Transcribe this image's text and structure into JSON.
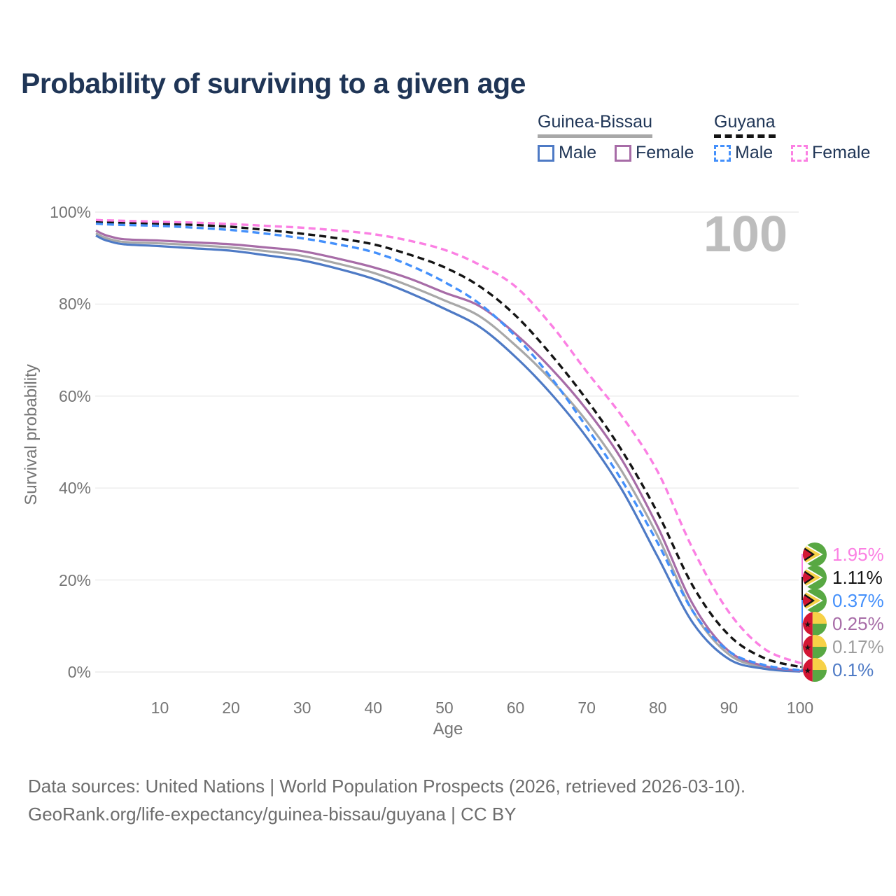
{
  "title": "Probability of surviving to a given age",
  "watermark_age": "100",
  "legend": {
    "groups": [
      {
        "name": "Guinea-Bissau",
        "line_color": "#a8a8a8",
        "line_style": "solid",
        "items": [
          {
            "label": "Male",
            "color": "#4e7ac5",
            "dashed": false
          },
          {
            "label": "Female",
            "color": "#a76ca7",
            "dashed": false
          }
        ]
      },
      {
        "name": "Guyana",
        "line_color": "#141414",
        "line_style": "dashed",
        "items": [
          {
            "label": "Male",
            "color": "#4490fb",
            "dashed": true
          },
          {
            "label": "Female",
            "color": "#fb80e3",
            "dashed": true
          }
        ]
      }
    ]
  },
  "chart_data": {
    "type": "line",
    "title": "Probability of surviving to a given age",
    "xlabel": "Age",
    "ylabel": "Survival probability",
    "xlim": [
      1,
      100
    ],
    "ylim": [
      0,
      100
    ],
    "grid": "horizontal",
    "legend_position": "top-right",
    "x_ticks": [
      10,
      20,
      30,
      40,
      50,
      60,
      70,
      80,
      90,
      100
    ],
    "y_ticks": [
      {
        "value": 0,
        "label": "0%"
      },
      {
        "value": 20,
        "label": "20%"
      },
      {
        "value": 40,
        "label": "40%"
      },
      {
        "value": 60,
        "label": "60%"
      },
      {
        "value": 80,
        "label": "80%"
      },
      {
        "value": 100,
        "label": "100%"
      }
    ],
    "x": [
      1,
      2,
      3,
      5,
      10,
      15,
      20,
      25,
      30,
      35,
      40,
      45,
      50,
      55,
      60,
      65,
      70,
      75,
      80,
      85,
      90,
      95,
      100
    ],
    "series": [
      {
        "name": "Guinea-Bissau",
        "color": "#a8a8a8",
        "dashed": false,
        "values": [
          95.4,
          94.6,
          94.1,
          93.5,
          93.2,
          92.8,
          92.3,
          91.5,
          90.5,
          88.8,
          86.8,
          84.0,
          80.8,
          77.3,
          71.0,
          63.5,
          54.5,
          43.5,
          29.5,
          13.0,
          3.8,
          1.0,
          0.17
        ]
      },
      {
        "name": "Guinea-Bissau Male",
        "color": "#4e7ac5",
        "dashed": false,
        "values": [
          94.9,
          94.1,
          93.6,
          93.0,
          92.6,
          92.1,
          91.6,
          90.6,
          89.5,
          87.7,
          85.5,
          82.5,
          79.0,
          75.0,
          68.5,
          60.5,
          51.0,
          39.5,
          25.0,
          10.5,
          2.8,
          0.7,
          0.1
        ]
      },
      {
        "name": "Guinea-Bissau Female",
        "color": "#a76ca7",
        "dashed": false,
        "values": [
          96.0,
          95.2,
          94.7,
          94.1,
          93.8,
          93.4,
          93.0,
          92.3,
          91.5,
          89.9,
          88.0,
          85.6,
          82.5,
          79.5,
          73.5,
          66.0,
          57.0,
          46.0,
          31.5,
          14.5,
          4.5,
          1.3,
          0.25
        ]
      },
      {
        "name": "Guyana",
        "color": "#141414",
        "dashed": true,
        "values": [
          97.9,
          97.8,
          97.8,
          97.7,
          97.5,
          97.2,
          96.8,
          96.1,
          95.3,
          94.3,
          93.0,
          90.8,
          88.0,
          83.8,
          77.5,
          69.0,
          59.2,
          48.0,
          34.5,
          18.5,
          8.0,
          3.0,
          1.11
        ]
      },
      {
        "name": "Guyana Male",
        "color": "#4490fb",
        "dashed": true,
        "values": [
          97.5,
          97.4,
          97.3,
          97.2,
          97.0,
          96.6,
          96.1,
          95.3,
          94.3,
          93.0,
          91.3,
          88.5,
          84.8,
          80.0,
          73.0,
          64.0,
          53.2,
          41.5,
          28.0,
          13.0,
          4.5,
          1.5,
          0.37
        ]
      },
      {
        "name": "Guyana Female",
        "color": "#fb80e3",
        "dashed": true,
        "values": [
          98.3,
          98.2,
          98.2,
          98.1,
          97.9,
          97.7,
          97.4,
          97.0,
          96.6,
          96.0,
          95.2,
          93.8,
          91.8,
          88.5,
          83.8,
          75.5,
          65.3,
          55.5,
          43.5,
          26.5,
          13.0,
          5.0,
          1.95
        ]
      }
    ],
    "hover_age": 100,
    "end_labels": [
      {
        "label": "1.95%",
        "value": 1.95,
        "color": "#fb80e3",
        "flag": "guyana",
        "series": "Guyana Female"
      },
      {
        "label": "1.11%",
        "value": 1.11,
        "color": "#141414",
        "flag": "guyana",
        "series": "Guyana"
      },
      {
        "label": "0.37%",
        "value": 0.37,
        "color": "#4490fb",
        "flag": "guyana",
        "series": "Guyana Male"
      },
      {
        "label": "0.25%",
        "value": 0.25,
        "color": "#a76ca7",
        "flag": "guinea-bissau",
        "series": "Guinea-Bissau Female"
      },
      {
        "label": "0.17%",
        "value": 0.17,
        "color": "#9e9e9e",
        "flag": "guinea-bissau",
        "series": "Guinea-Bissau"
      },
      {
        "label": "0.1%",
        "value": 0.1,
        "color": "#4e7ac5",
        "flag": "guinea-bissau",
        "series": "Guinea-Bissau Male"
      }
    ],
    "colors": {
      "grid": "#ebebeb",
      "axis_text": "#757575",
      "title_text": "#1f3556",
      "watermark": "#bdbdbd"
    }
  },
  "footer": {
    "line1": "Data sources: United Nations | World Population Prospects (2026, retrieved 2026-03-10).",
    "line2": "GeoRank.org/life-expectancy/guinea-bissau/guyana | CC BY"
  }
}
